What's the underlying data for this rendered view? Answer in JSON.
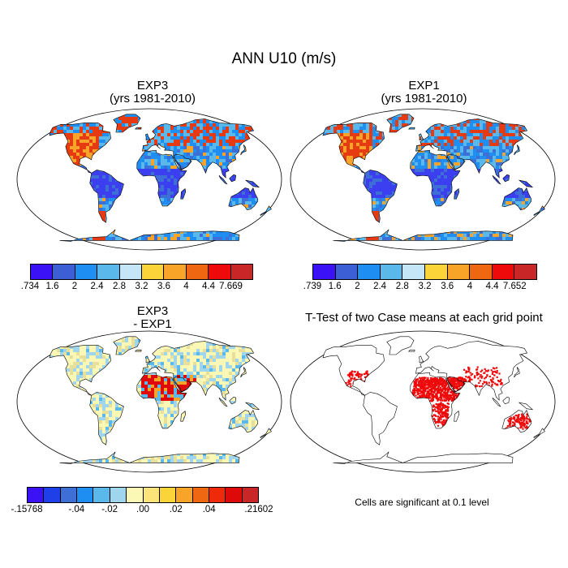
{
  "title": "ANN U10 (m/s)",
  "panels": {
    "exp3": {
      "title": "EXP3",
      "subtitle": "(yrs 1981-2010)"
    },
    "exp1": {
      "title": "EXP1",
      "subtitle": "(yrs 1981-2010)"
    },
    "diff": {
      "title": "EXP3",
      "subtitle": "- EXP1"
    },
    "ttest": {
      "title": "T-Test of two Case means at each grid point",
      "note": "Cells are significant at 0.1 level"
    }
  },
  "colorbars": {
    "exp3": {
      "colors": [
        "#3b12f5",
        "#3d5fd6",
        "#1f8ef2",
        "#5ab9ea",
        "#c4e6f6",
        "#fbd43a",
        "#f7a429",
        "#f06711",
        "#ee0a0a",
        "#c92727"
      ],
      "labels": [
        ".734",
        "1.6",
        "2",
        "2.4",
        "2.8",
        "3.2",
        "3.6",
        "4",
        "4.4",
        "7.669"
      ]
    },
    "exp1": {
      "colors": [
        "#3b12f5",
        "#3d5fd6",
        "#1f8ef2",
        "#5ab9ea",
        "#c4e6f6",
        "#fbd43a",
        "#f7a429",
        "#f06711",
        "#ee0a0a",
        "#c92727"
      ],
      "labels": [
        ".739",
        "1.6",
        "2",
        "2.4",
        "2.8",
        "3.2",
        "3.6",
        "4",
        "4.4",
        "7.652"
      ]
    },
    "diff": {
      "colors": [
        "#3b12f5",
        "#1f3fe8",
        "#3d6fd6",
        "#1f8ef2",
        "#5ab9ea",
        "#9fd6ee",
        "#fbf7b5",
        "#fbe57a",
        "#fbd43a",
        "#f7a429",
        "#f06711",
        "#ee2a0a",
        "#de0a0a",
        "#c92727"
      ],
      "labels": [
        "-.15768",
        "-.04",
        "-.02",
        ".00",
        ".02",
        ".04",
        ".21602"
      ],
      "label_positions": [
        0,
        3,
        5,
        7,
        9,
        11,
        14
      ]
    }
  },
  "map_fill": {
    "exp3": [
      "#3b3ff0",
      "#1f8ef2",
      "#5ab9ea",
      "#e63a12",
      "#3d6fd6",
      "#f7a429"
    ],
    "exp1": [
      "#3b3ff0",
      "#1f8ef2",
      "#5ab9ea",
      "#e63a12",
      "#3d6fd6",
      "#f7a429"
    ],
    "diff": [
      "#fbf7b5",
      "#9fd6ee",
      "#e8e09a",
      "#5ab9ea",
      "#f7a429",
      "#de0a0a"
    ],
    "ttest": [
      "#ffffff"
    ]
  },
  "significance_color": "#ee0a0a"
}
